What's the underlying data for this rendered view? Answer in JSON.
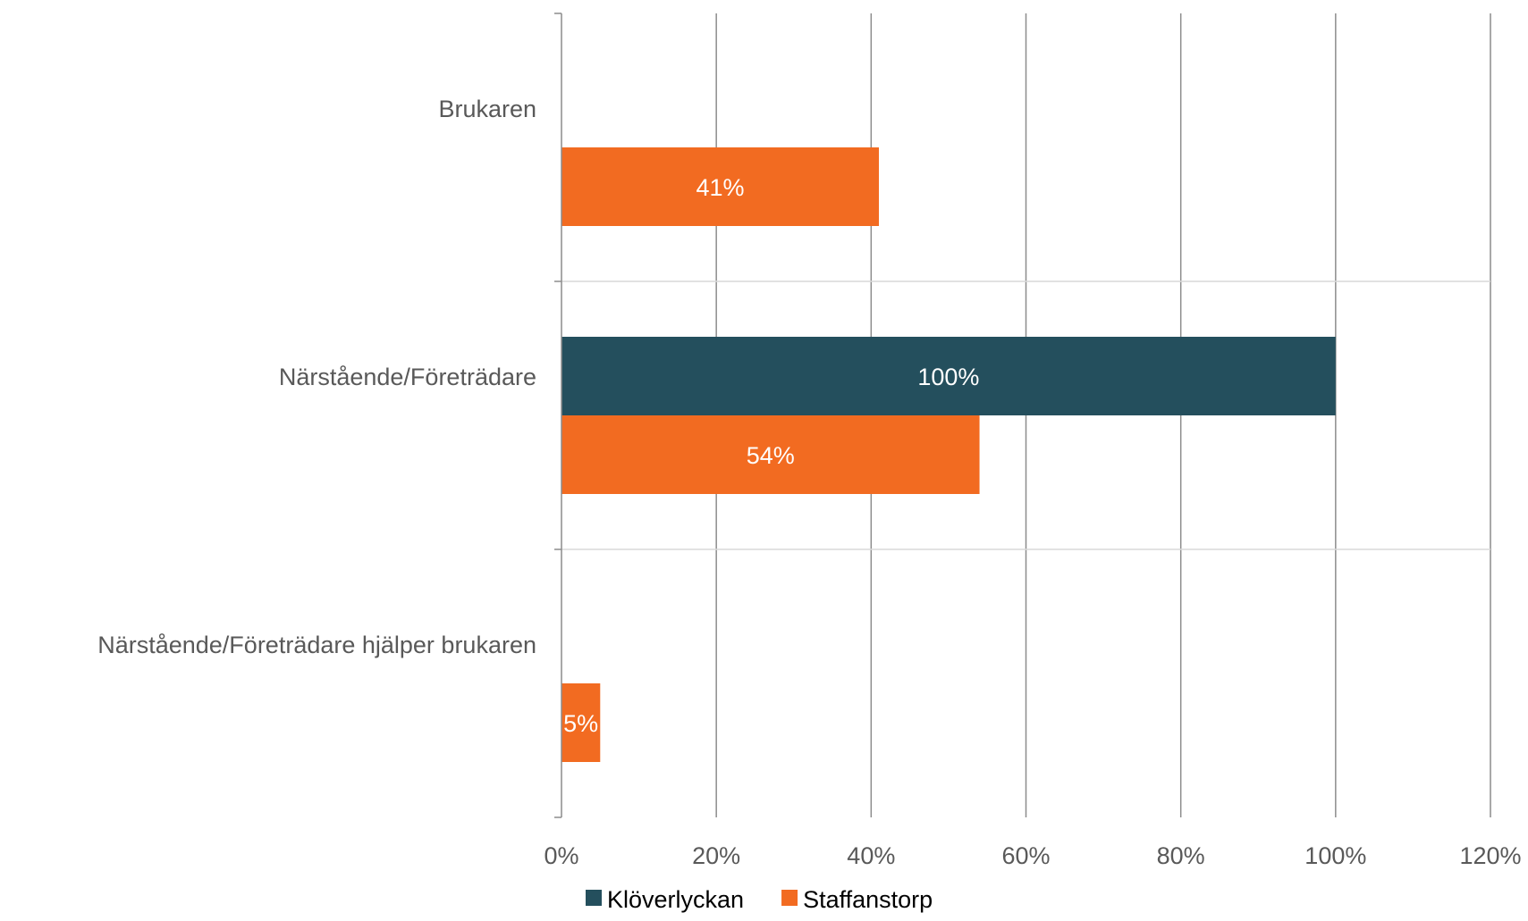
{
  "chart_data": {
    "type": "bar",
    "orientation": "horizontal",
    "categories": [
      "Brukaren",
      "Närstående/Företrädare",
      "Närstående/Företrädare hjälper brukaren"
    ],
    "series": [
      {
        "name": "Klöverlyckan",
        "color": "#244f5d",
        "values": [
          null,
          100,
          null
        ],
        "labels": [
          "",
          "100%",
          ""
        ]
      },
      {
        "name": "Staffanstorp",
        "color": "#f26b21",
        "values": [
          41,
          54,
          5
        ],
        "labels": [
          "41%",
          "54%",
          "5%"
        ]
      }
    ],
    "xlim": [
      0,
      120
    ],
    "x_ticks": [
      0,
      20,
      40,
      60,
      80,
      100,
      120
    ],
    "x_tick_labels": [
      "0%",
      "20%",
      "40%",
      "60%",
      "80%",
      "100%",
      "120%"
    ],
    "grid": true,
    "legend": "bottom"
  }
}
